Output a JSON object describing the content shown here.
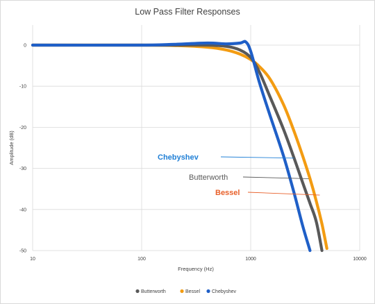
{
  "chart_data": {
    "type": "line",
    "title": "Low Pass Filter Responses",
    "xlabel": "Frequency (Hz)",
    "ylabel": "Amplitude (dB)",
    "x_scale": "log",
    "xlim": [
      10,
      10000
    ],
    "ylim": [
      -50,
      0
    ],
    "x_ticks": [
      10,
      100,
      1000,
      10000
    ],
    "x_tick_labels": [
      "10",
      "100",
      "1000",
      "10000"
    ],
    "y_ticks": [
      0,
      -10,
      -20,
      -30,
      -40,
      -50
    ],
    "y_tick_labels": [
      "0",
      "-10",
      "-20",
      "-30",
      "-40",
      "-50"
    ],
    "grid": true,
    "legend_position": "bottom",
    "series": [
      {
        "name": "Butterworth",
        "color": "#595959",
        "points": [
          [
            10,
            0
          ],
          [
            100,
            0
          ],
          [
            200,
            0
          ],
          [
            400,
            0
          ],
          [
            600,
            -0.3
          ],
          [
            800,
            -1.2
          ],
          [
            1000,
            -3
          ],
          [
            1200,
            -6.5
          ],
          [
            1500,
            -12.5
          ],
          [
            2000,
            -20.5
          ],
          [
            2500,
            -27.5
          ],
          [
            3000,
            -33.5
          ],
          [
            3500,
            -38.5
          ],
          [
            4000,
            -43
          ],
          [
            4500,
            -50
          ]
        ]
      },
      {
        "name": "Bessel",
        "color": "#f39c12",
        "points": [
          [
            10,
            0
          ],
          [
            100,
            0
          ],
          [
            200,
            -0.1
          ],
          [
            400,
            -0.5
          ],
          [
            600,
            -1.2
          ],
          [
            800,
            -2.2
          ],
          [
            1000,
            -3.5
          ],
          [
            1200,
            -5.2
          ],
          [
            1500,
            -8.2
          ],
          [
            2000,
            -14.5
          ],
          [
            2500,
            -21
          ],
          [
            3000,
            -27
          ],
          [
            3500,
            -32.5
          ],
          [
            4000,
            -38
          ],
          [
            4500,
            -43.5
          ],
          [
            5000,
            -49.5
          ]
        ]
      },
      {
        "name": "Chebyshev",
        "color": "#1f5fc7",
        "points": [
          [
            10,
            0
          ],
          [
            100,
            0
          ],
          [
            200,
            0.2
          ],
          [
            400,
            0.5
          ],
          [
            600,
            0.3
          ],
          [
            800,
            0.5
          ],
          [
            900,
            0.8
          ],
          [
            1000,
            -1.5
          ],
          [
            1200,
            -9
          ],
          [
            1500,
            -17
          ],
          [
            2000,
            -27
          ],
          [
            2500,
            -36
          ],
          [
            3000,
            -44
          ],
          [
            3500,
            -50
          ]
        ]
      }
    ],
    "annotations": [
      {
        "text": "Chebyshev",
        "color": "#1f7fd6",
        "anchor": [
          2500,
          -27.5
        ]
      },
      {
        "text": "Butterworth",
        "color": "#595959",
        "anchor": [
          3400,
          -32.5
        ]
      },
      {
        "text": "Bessel",
        "color": "#e8602a",
        "anchor": [
          4300,
          -36.5
        ]
      }
    ]
  }
}
